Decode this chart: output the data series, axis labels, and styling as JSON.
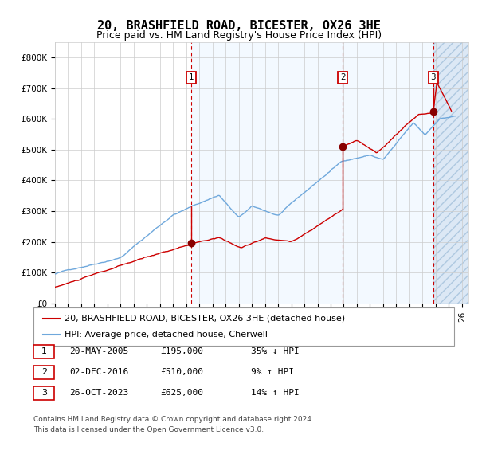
{
  "title": "20, BRASHFIELD ROAD, BICESTER, OX26 3HE",
  "subtitle": "Price paid vs. HM Land Registry's House Price Index (HPI)",
  "xlim_start": 1995.0,
  "xlim_end": 2026.5,
  "ylim": [
    0,
    850000
  ],
  "yticks": [
    0,
    100000,
    200000,
    300000,
    400000,
    500000,
    600000,
    700000,
    800000
  ],
  "ytick_labels": [
    "£0",
    "£100K",
    "£200K",
    "£300K",
    "£400K",
    "£500K",
    "£600K",
    "£700K",
    "£800K"
  ],
  "hpi_color": "#6fa8dc",
  "price_color": "#cc0000",
  "marker_color": "#880000",
  "vline_color": "#cc0000",
  "bg_fill_color": "#ddeeff",
  "hatch_color": "#b0c8e0",
  "sale_dates": [
    2005.38,
    2016.92,
    2023.82
  ],
  "sale_prices": [
    195000,
    510000,
    625000
  ],
  "sale_labels": [
    "1",
    "2",
    "3"
  ],
  "legend_red_label": "20, BRASHFIELD ROAD, BICESTER, OX26 3HE (detached house)",
  "legend_blue_label": "HPI: Average price, detached house, Cherwell",
  "table_rows": [
    [
      "1",
      "20-MAY-2005",
      "£195,000",
      "35% ↓ HPI"
    ],
    [
      "2",
      "02-DEC-2016",
      "£510,000",
      "9% ↑ HPI"
    ],
    [
      "3",
      "26-OCT-2023",
      "£625,000",
      "14% ↑ HPI"
    ]
  ],
  "footer_text": "Contains HM Land Registry data © Crown copyright and database right 2024.\nThis data is licensed under the Open Government Licence v3.0.",
  "grid_color": "#cccccc",
  "title_fontsize": 11,
  "subtitle_fontsize": 9,
  "tick_fontsize": 7.5,
  "legend_fontsize": 8
}
